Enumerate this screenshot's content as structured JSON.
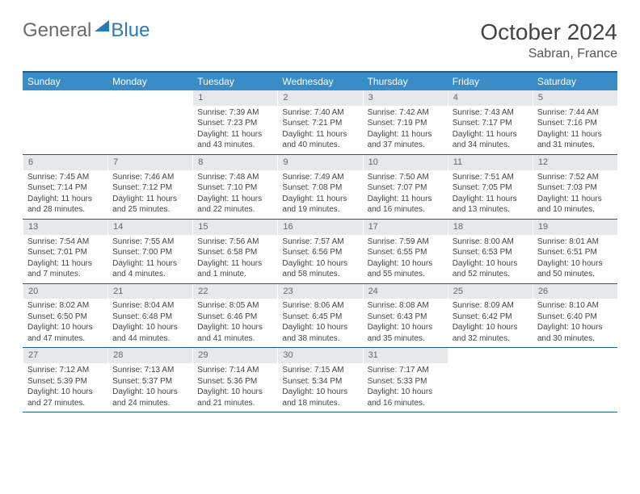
{
  "logo": {
    "text1": "General",
    "text2": "Blue"
  },
  "title": "October 2024",
  "location": "Sabran, France",
  "colors": {
    "header_bg": "#3a8cc6",
    "header_border": "#1f5a8a",
    "daynum_bg": "#e7e8ea",
    "text": "#444444"
  },
  "day_names": [
    "Sunday",
    "Monday",
    "Tuesday",
    "Wednesday",
    "Thursday",
    "Friday",
    "Saturday"
  ],
  "weeks": [
    [
      {
        "empty": true
      },
      {
        "empty": true
      },
      {
        "day": "1",
        "sunrise": "7:39 AM",
        "sunset": "7:23 PM",
        "daylight": "11 hours and 43 minutes."
      },
      {
        "day": "2",
        "sunrise": "7:40 AM",
        "sunset": "7:21 PM",
        "daylight": "11 hours and 40 minutes."
      },
      {
        "day": "3",
        "sunrise": "7:42 AM",
        "sunset": "7:19 PM",
        "daylight": "11 hours and 37 minutes."
      },
      {
        "day": "4",
        "sunrise": "7:43 AM",
        "sunset": "7:17 PM",
        "daylight": "11 hours and 34 minutes."
      },
      {
        "day": "5",
        "sunrise": "7:44 AM",
        "sunset": "7:16 PM",
        "daylight": "11 hours and 31 minutes."
      }
    ],
    [
      {
        "day": "6",
        "sunrise": "7:45 AM",
        "sunset": "7:14 PM",
        "daylight": "11 hours and 28 minutes."
      },
      {
        "day": "7",
        "sunrise": "7:46 AM",
        "sunset": "7:12 PM",
        "daylight": "11 hours and 25 minutes."
      },
      {
        "day": "8",
        "sunrise": "7:48 AM",
        "sunset": "7:10 PM",
        "daylight": "11 hours and 22 minutes."
      },
      {
        "day": "9",
        "sunrise": "7:49 AM",
        "sunset": "7:08 PM",
        "daylight": "11 hours and 19 minutes."
      },
      {
        "day": "10",
        "sunrise": "7:50 AM",
        "sunset": "7:07 PM",
        "daylight": "11 hours and 16 minutes."
      },
      {
        "day": "11",
        "sunrise": "7:51 AM",
        "sunset": "7:05 PM",
        "daylight": "11 hours and 13 minutes."
      },
      {
        "day": "12",
        "sunrise": "7:52 AM",
        "sunset": "7:03 PM",
        "daylight": "11 hours and 10 minutes."
      }
    ],
    [
      {
        "day": "13",
        "sunrise": "7:54 AM",
        "sunset": "7:01 PM",
        "daylight": "11 hours and 7 minutes."
      },
      {
        "day": "14",
        "sunrise": "7:55 AM",
        "sunset": "7:00 PM",
        "daylight": "11 hours and 4 minutes."
      },
      {
        "day": "15",
        "sunrise": "7:56 AM",
        "sunset": "6:58 PM",
        "daylight": "11 hours and 1 minute."
      },
      {
        "day": "16",
        "sunrise": "7:57 AM",
        "sunset": "6:56 PM",
        "daylight": "10 hours and 58 minutes."
      },
      {
        "day": "17",
        "sunrise": "7:59 AM",
        "sunset": "6:55 PM",
        "daylight": "10 hours and 55 minutes."
      },
      {
        "day": "18",
        "sunrise": "8:00 AM",
        "sunset": "6:53 PM",
        "daylight": "10 hours and 52 minutes."
      },
      {
        "day": "19",
        "sunrise": "8:01 AM",
        "sunset": "6:51 PM",
        "daylight": "10 hours and 50 minutes."
      }
    ],
    [
      {
        "day": "20",
        "sunrise": "8:02 AM",
        "sunset": "6:50 PM",
        "daylight": "10 hours and 47 minutes."
      },
      {
        "day": "21",
        "sunrise": "8:04 AM",
        "sunset": "6:48 PM",
        "daylight": "10 hours and 44 minutes."
      },
      {
        "day": "22",
        "sunrise": "8:05 AM",
        "sunset": "6:46 PM",
        "daylight": "10 hours and 41 minutes."
      },
      {
        "day": "23",
        "sunrise": "8:06 AM",
        "sunset": "6:45 PM",
        "daylight": "10 hours and 38 minutes."
      },
      {
        "day": "24",
        "sunrise": "8:08 AM",
        "sunset": "6:43 PM",
        "daylight": "10 hours and 35 minutes."
      },
      {
        "day": "25",
        "sunrise": "8:09 AM",
        "sunset": "6:42 PM",
        "daylight": "10 hours and 32 minutes."
      },
      {
        "day": "26",
        "sunrise": "8:10 AM",
        "sunset": "6:40 PM",
        "daylight": "10 hours and 30 minutes."
      }
    ],
    [
      {
        "day": "27",
        "sunrise": "7:12 AM",
        "sunset": "5:39 PM",
        "daylight": "10 hours and 27 minutes."
      },
      {
        "day": "28",
        "sunrise": "7:13 AM",
        "sunset": "5:37 PM",
        "daylight": "10 hours and 24 minutes."
      },
      {
        "day": "29",
        "sunrise": "7:14 AM",
        "sunset": "5:36 PM",
        "daylight": "10 hours and 21 minutes."
      },
      {
        "day": "30",
        "sunrise": "7:15 AM",
        "sunset": "5:34 PM",
        "daylight": "10 hours and 18 minutes."
      },
      {
        "day": "31",
        "sunrise": "7:17 AM",
        "sunset": "5:33 PM",
        "daylight": "10 hours and 16 minutes."
      },
      {
        "empty": true
      },
      {
        "empty": true
      }
    ]
  ],
  "labels": {
    "sunrise": "Sunrise:",
    "sunset": "Sunset:",
    "daylight": "Daylight:"
  }
}
